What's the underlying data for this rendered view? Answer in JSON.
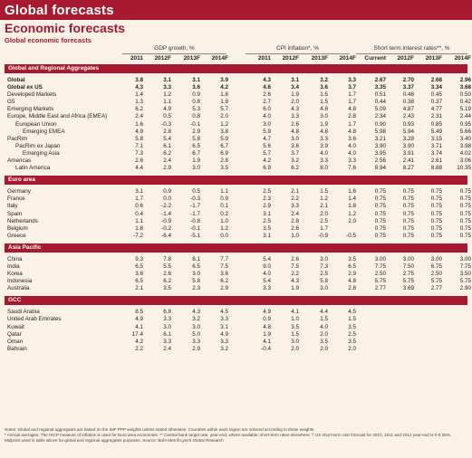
{
  "title": "Global forecasts",
  "subtitle": "Economic forecasts",
  "subtitle2": "Global economic forecasts",
  "column_groups": [
    {
      "label": "GDP growth, %"
    },
    {
      "label": "CPI inflation*, %"
    },
    {
      "label": "Short term interest rates**, %"
    }
  ],
  "years": [
    "2011",
    "2012F",
    "2013F",
    "2014F",
    "2011",
    "2012F",
    "2013F",
    "2014F",
    "Current",
    "2012F",
    "2013F",
    "2014F"
  ],
  "sections": [
    {
      "name": "Global and Regional Aggregates",
      "rows": [
        {
          "label": "Global",
          "bold": true,
          "indent": 0,
          "v": [
            "3.8",
            "3.1",
            "3.1",
            "3.9",
            "4.3",
            "3.1",
            "3.2",
            "3.3",
            "2.67",
            "2.70",
            "2.68",
            "2.96"
          ]
        },
        {
          "label": "Global ex US",
          "bold": true,
          "indent": 0,
          "v": [
            "4.3",
            "3.3",
            "3.6",
            "4.2",
            "4.6",
            "3.4",
            "3.6",
            "3.7",
            "3.35",
            "3.37",
            "3.34",
            "3.68"
          ]
        },
        {
          "label": "Developed Markets",
          "bold": false,
          "indent": 0,
          "v": [
            "1.4",
            "1.2",
            "0.9",
            "1.8",
            "2.6",
            "1.9",
            "1.5",
            "1.7",
            "0.51",
            "0.48",
            "0.45",
            "0.50"
          ]
        },
        {
          "label": "G5",
          "bold": false,
          "indent": 0,
          "v": [
            "1.3",
            "1.1",
            "0.8",
            "1.8",
            "2.7",
            "2.0",
            "1.5",
            "1.7",
            "0.44",
            "0.38",
            "0.37",
            "0.42"
          ]
        },
        {
          "label": "Emerging Markets",
          "bold": false,
          "indent": 0,
          "v": [
            "6.2",
            "4.9",
            "5.3",
            "5.7",
            "6.0",
            "4.3",
            "4.8",
            "4.8",
            "5.09",
            "4.87",
            "4.77",
            "5.19"
          ]
        },
        {
          "label": "Europe, Middle East and Africa (EMEA)",
          "bold": false,
          "indent": 0,
          "v": [
            "2.4",
            "0.5",
            "0.8",
            "2.0",
            "4.0",
            "3.3",
            "3.0",
            "2.8",
            "2.34",
            "2.43",
            "2.31",
            "2.44"
          ]
        },
        {
          "label": "European Union",
          "bold": false,
          "indent": 1,
          "v": [
            "1.6",
            "-0.3",
            "-0.1",
            "1.2",
            "3.0",
            "2.6",
            "1.9",
            "1.7",
            "0.90",
            "0.93",
            "0.85",
            "0.95"
          ]
        },
        {
          "label": "Emerging EMEA",
          "bold": false,
          "indent": 2,
          "v": [
            "4.9",
            "2.8",
            "2.9",
            "3.8",
            "5.9",
            "4.8",
            "4.8",
            "4.8",
            "5.98",
            "5.94",
            "5.49",
            "5.66"
          ]
        },
        {
          "label": "PacRim",
          "bold": false,
          "indent": 0,
          "v": [
            "5.8",
            "5.4",
            "5.8",
            "5.9",
            "4.7",
            "3.0",
            "3.3",
            "3.6",
            "3.21",
            "3.28",
            "3.15",
            "3.40"
          ]
        },
        {
          "label": "PacRim ex Japan",
          "bold": false,
          "indent": 1,
          "v": [
            "7.1",
            "6.1",
            "6.5",
            "6.7",
            "5.6",
            "3.6",
            "3.9",
            "4.0",
            "3.90",
            "3.90",
            "3.71",
            "3.98"
          ]
        },
        {
          "label": "Emerging Asia",
          "bold": false,
          "indent": 2,
          "v": [
            "7.3",
            "6.2",
            "6.7",
            "6.9",
            "5.7",
            "3.7",
            "4.0",
            "4.0",
            "3.95",
            "3.91",
            "3.74",
            "4.02"
          ]
        },
        {
          "label": "Americas",
          "bold": false,
          "indent": 0,
          "v": [
            "2.6",
            "2.4",
            "1.9",
            "2.8",
            "4.2",
            "3.2",
            "3.3",
            "3.3",
            "2.56",
            "2.41",
            "2.61",
            "3.06"
          ]
        },
        {
          "label": "Latin America",
          "bold": false,
          "indent": 1,
          "v": [
            "4.4",
            "2.9",
            "3.0",
            "3.5",
            "6.9",
            "6.2",
            "8.0",
            "7.6",
            "8.94",
            "8.27",
            "8.88",
            "10.35"
          ]
        }
      ]
    },
    {
      "name": "Euro area",
      "rows": [
        {
          "label": "Germany",
          "bold": false,
          "indent": 0,
          "v": [
            "3.1",
            "0.9",
            "0.5",
            "1.1",
            "2.5",
            "2.1",
            "1.5",
            "1.6",
            "0.75",
            "0.75",
            "0.75",
            "0.75"
          ]
        },
        {
          "label": "France",
          "bold": false,
          "indent": 0,
          "v": [
            "1.7",
            "0.0",
            "-0.3",
            "0.9",
            "2.3",
            "2.2",
            "1.2",
            "1.4",
            "0.75",
            "0.75",
            "0.75",
            "0.75"
          ]
        },
        {
          "label": "Italy",
          "bold": false,
          "indent": 0,
          "v": [
            "0.6",
            "-2.2",
            "-1.7",
            "0.1",
            "2.9",
            "3.3",
            "2.1",
            "1.8",
            "0.75",
            "0.75",
            "0.75",
            "0.75"
          ]
        },
        {
          "label": "Spain",
          "bold": false,
          "indent": 0,
          "v": [
            "0.4",
            "-1.4",
            "-1.7",
            "0.2",
            "3.1",
            "2.4",
            "2.0",
            "1.2",
            "0.75",
            "0.75",
            "0.75",
            "0.75"
          ]
        },
        {
          "label": "Netherlands",
          "bold": false,
          "indent": 0,
          "v": [
            "1.1",
            "-0.9",
            "-0.8",
            "1.0",
            "2.5",
            "2.8",
            "2.5",
            "2.0",
            "0.75",
            "0.75",
            "0.75",
            "0.75"
          ]
        },
        {
          "label": "Belgium",
          "bold": false,
          "indent": 0,
          "v": [
            "1.8",
            "-0.2",
            "-0.1",
            "1.2",
            "3.5",
            "2.6",
            "1.7",
            "",
            "0.75",
            "0.75",
            "0.75",
            "0.75"
          ]
        },
        {
          "label": "Greece",
          "bold": false,
          "indent": 0,
          "v": [
            "-7.2",
            "-6.4",
            "-5.1",
            "0.0",
            "3.1",
            "1.0",
            "-0.9",
            "-0.5",
            "0.75",
            "0.75",
            "0.75",
            "0.75"
          ]
        }
      ]
    },
    {
      "name": "Asia Pacific",
      "rows": [
        {
          "label": "China",
          "bold": false,
          "indent": 0,
          "v": [
            "9.3",
            "7.8",
            "8.1",
            "7.7",
            "5.4",
            "2.6",
            "3.0",
            "3.5",
            "3.00",
            "3.00",
            "3.00",
            "3.00"
          ]
        },
        {
          "label": "India",
          "bold": false,
          "indent": 0,
          "v": [
            "6.5",
            "5.5",
            "6.5",
            "7.5",
            "9.0",
            "7.5",
            "7.3",
            "6.5",
            "7.75",
            "7.50",
            "6.75",
            "7.75"
          ]
        },
        {
          "label": "Korea",
          "bold": false,
          "indent": 0,
          "v": [
            "3.6",
            "2.6",
            "3.0",
            "3.6",
            "4.0",
            "2.2",
            "2.5",
            "2.9",
            "2.50",
            "2.75",
            "2.50",
            "3.50"
          ]
        },
        {
          "label": "Indonesia",
          "bold": false,
          "indent": 0,
          "v": [
            "6.5",
            "6.2",
            "5.8",
            "6.2",
            "5.4",
            "4.3",
            "5.8",
            "4.8",
            "5.75",
            "5.75",
            "5.75",
            "5.75"
          ]
        },
        {
          "label": "Australia",
          "bold": false,
          "indent": 0,
          "v": [
            "2.1",
            "3.5",
            "2.3",
            "2.9",
            "3.3",
            "1.9",
            "3.0",
            "2.8",
            "2.77",
            "3.69",
            "2.77",
            "2.90"
          ]
        }
      ]
    },
    {
      "name": "GCC",
      "rows": [
        {
          "label": "Saudi Arabia",
          "bold": false,
          "indent": 0,
          "v": [
            "8.5",
            "6.8",
            "4.3",
            "4.5",
            "4.9",
            "4.1",
            "4.4",
            "4.5",
            "",
            "",
            "",
            ""
          ]
        },
        {
          "label": "United Arab Emirates",
          "bold": false,
          "indent": 0,
          "v": [
            "4.9",
            "3.3",
            "3.2",
            "3.3",
            "0.9",
            "1.0",
            "1.5",
            "1.5",
            "",
            "",
            "",
            ""
          ]
        },
        {
          "label": "Kuwait",
          "bold": false,
          "indent": 0,
          "v": [
            "4.1",
            "3.0",
            "3.0",
            "3.1",
            "4.8",
            "3.5",
            "4.0",
            "3.5",
            "",
            "",
            "",
            ""
          ]
        },
        {
          "label": "Qatar",
          "bold": false,
          "indent": 0,
          "v": [
            "17.4",
            "6.1",
            "5.0",
            "4.9",
            "1.9",
            "1.5",
            "2.0",
            "2.5",
            "",
            "",
            "",
            ""
          ]
        },
        {
          "label": "Oman",
          "bold": false,
          "indent": 0,
          "v": [
            "4.2",
            "3.3",
            "3.3",
            "3.3",
            "4.1",
            "3.0",
            "3.5",
            "3.5",
            "",
            "",
            "",
            ""
          ]
        },
        {
          "label": "Bahrain",
          "bold": false,
          "indent": 0,
          "v": [
            "2.2",
            "2.4",
            "2.9",
            "3.2",
            "-0.4",
            "2.0",
            "2.0",
            "2.0",
            "",
            "",
            "",
            ""
          ]
        }
      ]
    }
  ],
  "footnotes": [
    "Notes: Global and regional aggregates are based on the IMF PPP weights unless stated otherwise. Countries within each region are ordered according to these weights.",
    "* Annual averages. The HICP measure of inflation is used for Euro area economies. ** Central bank target rate, year-end, where available; short-term rates elsewhere. † US short-term rate forecast for 2010, 2011 and 2012 year-end is 0-0.25%.",
    "Midpoint used in table above for global and regional aggregates purposes. Source: BofA Merrill Lynch Global Research"
  ],
  "colors": {
    "accent": "#a6192e",
    "background": "#fbf1e6"
  }
}
